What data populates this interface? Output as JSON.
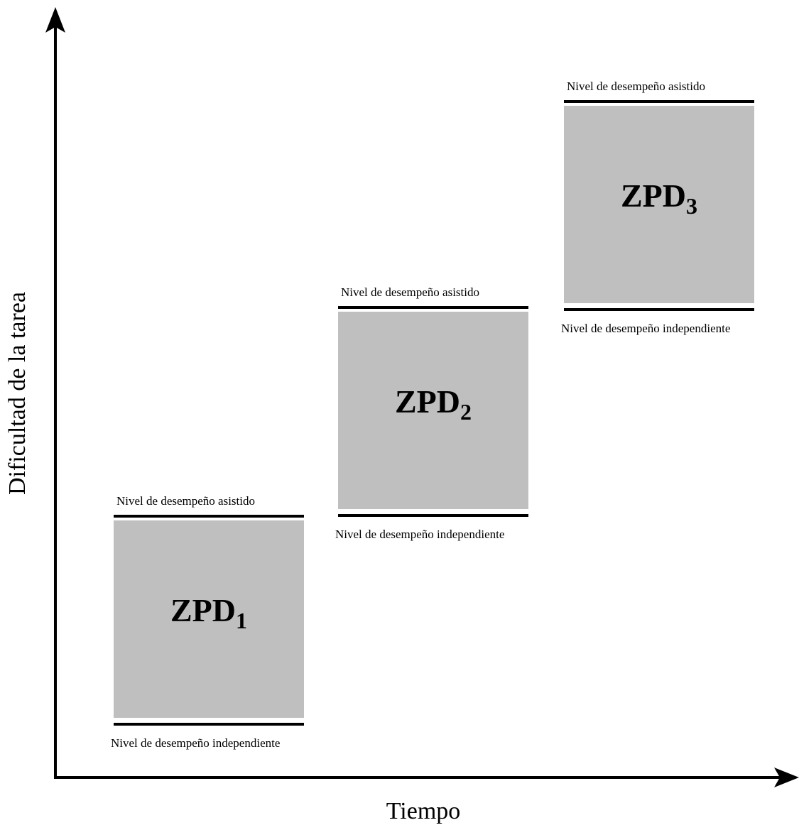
{
  "axes": {
    "y_label": "Dificultad de la tarea",
    "x_label": "Tiempo"
  },
  "zones": [
    {
      "name": "ZPD",
      "index": "1",
      "assisted_label": "Nivel de desempeño asistido",
      "independent_label": "Nivel de desempeño independiente"
    },
    {
      "name": "ZPD",
      "index": "2",
      "assisted_label": "Nivel de desempeño asistido",
      "independent_label": "Nivel de desempeño independiente"
    },
    {
      "name": "ZPD",
      "index": "3",
      "assisted_label": "Nivel de desempeño asistido",
      "independent_label": "Nivel de desempeño independiente"
    }
  ],
  "colors": {
    "zone_fill": "#bfbfbf",
    "lines": "#000000"
  }
}
